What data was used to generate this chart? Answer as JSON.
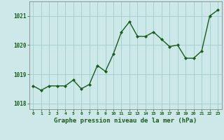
{
  "x": [
    0,
    1,
    2,
    3,
    4,
    5,
    6,
    7,
    8,
    9,
    10,
    11,
    12,
    13,
    14,
    15,
    16,
    17,
    18,
    19,
    20,
    21,
    22,
    23
  ],
  "y": [
    1018.6,
    1018.45,
    1018.6,
    1018.6,
    1018.6,
    1018.8,
    1018.5,
    1018.65,
    1019.3,
    1019.1,
    1019.7,
    1020.45,
    1020.8,
    1020.3,
    1020.3,
    1020.45,
    1020.2,
    1019.95,
    1020.0,
    1019.55,
    1019.55,
    1019.8,
    1021.0,
    1021.2
  ],
  "line_color": "#1a5c1a",
  "marker": "D",
  "marker_size": 2.0,
  "bg_color": "#cce8e8",
  "grid_color": "#a0cccc",
  "xlabel": "Graphe pression niveau de la mer (hPa)",
  "xlabel_color": "#1a5c1a",
  "tick_label_color": "#1a5c1a",
  "ylim": [
    1017.8,
    1021.5
  ],
  "yticks": [
    1018,
    1019,
    1020,
    1021
  ],
  "xlim": [
    -0.5,
    23.5
  ],
  "xticks": [
    0,
    1,
    2,
    3,
    4,
    5,
    6,
    7,
    8,
    9,
    10,
    11,
    12,
    13,
    14,
    15,
    16,
    17,
    18,
    19,
    20,
    21,
    22,
    23
  ],
  "font_family": "monospace",
  "linewidth": 1.0
}
